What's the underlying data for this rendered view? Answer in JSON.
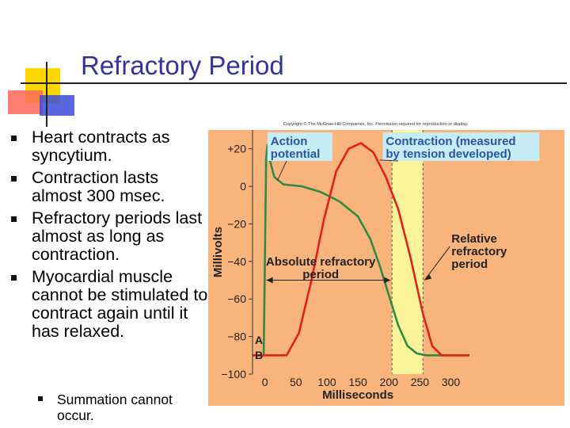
{
  "slide": {
    "title": "Refractory Period",
    "bullets": [
      "Heart contracts as syncytium.",
      "Contraction lasts almost 300 msec.",
      "Refractory periods last almost as long as contraction.",
      "Myocardial muscle cannot be stimulated to contract again until it has relaxed."
    ],
    "sub_bullets": [
      "Summation cannot occur."
    ]
  },
  "colors": {
    "title": "#3333a0",
    "plot_bg": "#f9b47c",
    "relative_band": "#fbf39a",
    "action_potential": "#2f8a45",
    "contraction": "#e0201c",
    "label_box": "#c6ecf5",
    "label_text": "#2a55a8"
  },
  "chart_data": {
    "type": "line",
    "copyright": "Copyright © The McGraw-Hill Companies, Inc. Permission required for reproduction or display.",
    "ylabel": "Millivolts",
    "xlabel": "Milliseconds",
    "xlim": [
      -20,
      330
    ],
    "ylim": [
      -100,
      30
    ],
    "x_ticks": [
      "0",
      "50",
      "100",
      "150",
      "200",
      "250",
      "300"
    ],
    "y_ticks": [
      "+20",
      "0",
      "−20",
      "−40",
      "−60",
      "−80",
      "−100"
    ],
    "series": [
      {
        "name": "Action potential",
        "x": [
          -20,
          -2,
          2,
          4,
          8,
          15,
          30,
          60,
          90,
          120,
          150,
          170,
          185,
          200,
          215,
          230,
          245,
          260,
          330
        ],
        "y": [
          -90,
          -90,
          15,
          22,
          14,
          5,
          1,
          0,
          -3,
          -8,
          -16,
          -28,
          -42,
          -58,
          -74,
          -85,
          -89,
          -90,
          -90
        ]
      },
      {
        "name": "Contraction (measured by tension developed)",
        "x": [
          -20,
          35,
          55,
          75,
          95,
          115,
          135,
          155,
          175,
          195,
          215,
          235,
          255,
          270,
          285,
          300,
          330
        ],
        "y": [
          -90,
          -90,
          -78,
          -50,
          -18,
          8,
          20,
          23,
          18,
          5,
          -12,
          -38,
          -68,
          -85,
          -90,
          -90,
          -90
        ]
      }
    ],
    "series_labels": [
      "Action potential",
      "Contraction (measured by tension developed)"
    ],
    "absolute_refractory": {
      "from": 0,
      "to": 205,
      "label": "Absolute refractory period"
    },
    "relative_refractory": {
      "from": 205,
      "to": 255,
      "label": "Relative refractory period"
    },
    "markers": [
      "A",
      "B"
    ]
  }
}
